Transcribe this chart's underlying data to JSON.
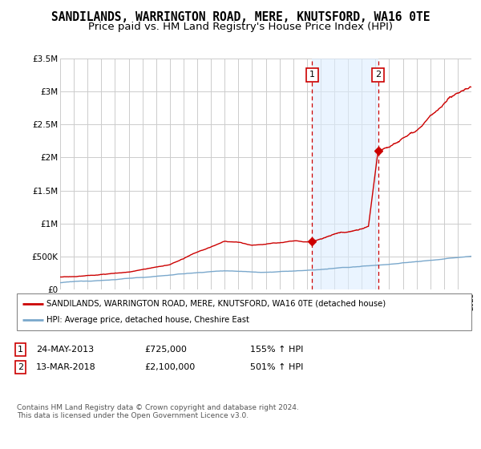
{
  "title": "SANDILANDS, WARRINGTON ROAD, MERE, KNUTSFORD, WA16 0TE",
  "subtitle": "Price paid vs. HM Land Registry's House Price Index (HPI)",
  "ylim": [
    0,
    3500000
  ],
  "yticks": [
    0,
    500000,
    1000000,
    1500000,
    2000000,
    2500000,
    3000000,
    3500000
  ],
  "xmin": 1995,
  "xmax": 2025,
  "sale1_date": 2013.39,
  "sale1_price": 725000,
  "sale2_date": 2018.19,
  "sale2_price": 2100000,
  "shaded_region_start": 2013.39,
  "shaded_region_end": 2018.19,
  "red_line_color": "#cc0000",
  "blue_line_color": "#7aa8cc",
  "legend_label_red": "SANDILANDS, WARRINGTON ROAD, MERE, KNUTSFORD, WA16 0TE (detached house)",
  "legend_label_blue": "HPI: Average price, detached house, Cheshire East",
  "footer": "Contains HM Land Registry data © Crown copyright and database right 2024.\nThis data is licensed under the Open Government Licence v3.0.",
  "background_color": "#ffffff",
  "grid_color": "#cccccc",
  "title_fontsize": 10.5,
  "subtitle_fontsize": 9.5
}
